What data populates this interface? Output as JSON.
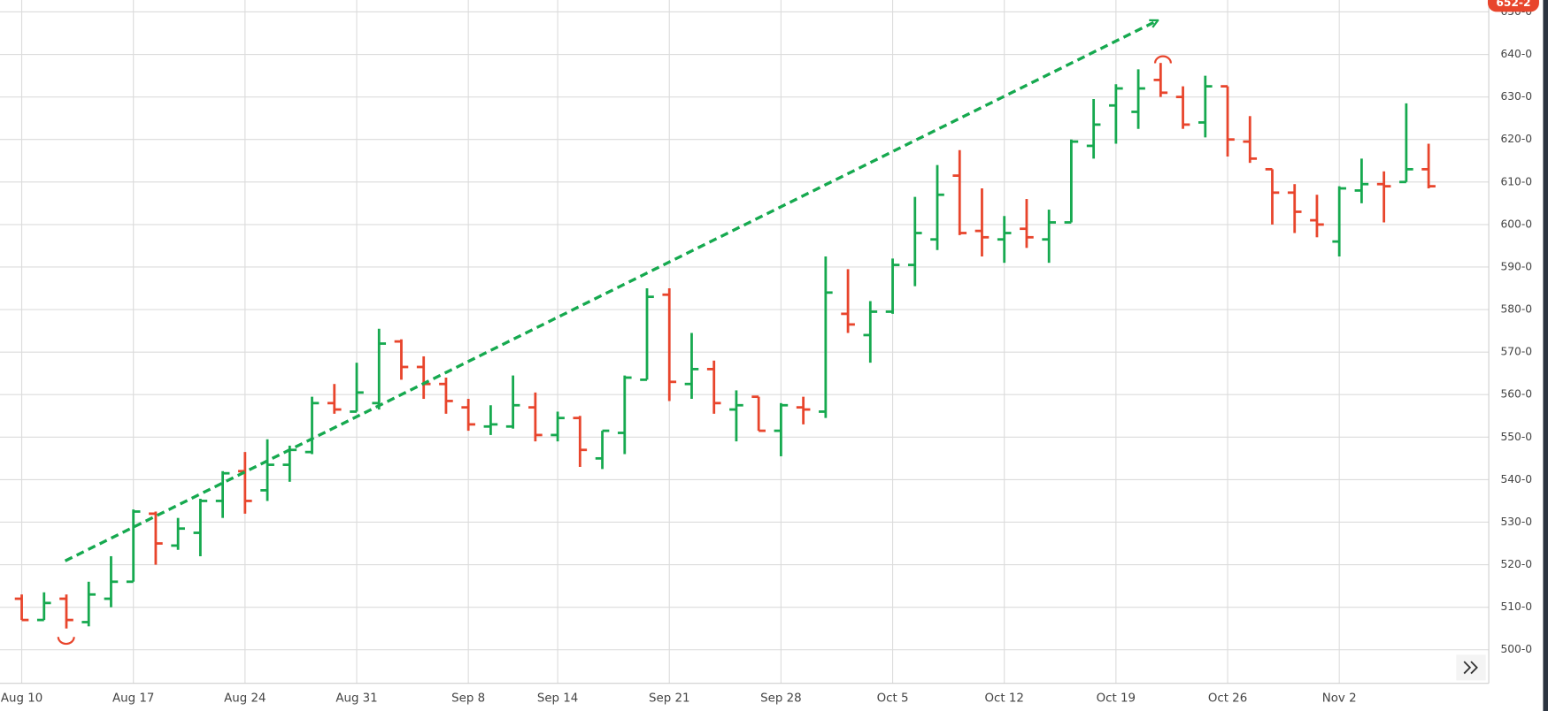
{
  "chart_data": {
    "type": "ohlc",
    "up_color": "#16a94f",
    "down_color": "#e8452c",
    "price_badge": "652-2",
    "categories": [
      "Aug 10",
      null,
      null,
      null,
      null,
      "Aug 17",
      null,
      null,
      null,
      null,
      "Aug 24",
      null,
      null,
      null,
      null,
      "Aug 31",
      null,
      null,
      null,
      null,
      "Sep 8",
      null,
      null,
      null,
      "Sep 14",
      null,
      null,
      null,
      null,
      "Sep 21",
      null,
      null,
      null,
      null,
      "Sep 28",
      null,
      null,
      null,
      null,
      "Oct 5",
      null,
      null,
      null,
      null,
      "Oct 12",
      null,
      null,
      null,
      null,
      "Oct 19",
      null,
      null,
      null,
      null,
      "Oct 26",
      null,
      null,
      null,
      null,
      "Nov 2",
      null,
      null,
      null,
      null
    ],
    "open": [
      512,
      507,
      512,
      506.5,
      512,
      516,
      532,
      524.5,
      527.5,
      535,
      542,
      537.5,
      543.5,
      546.5,
      558,
      556,
      558,
      572.5,
      566.5,
      562.5,
      557,
      552.5,
      552.5,
      557,
      550.5,
      554.5,
      545,
      551,
      563.5,
      583.5,
      562.5,
      566,
      556.5,
      559.5,
      551.5,
      557,
      556,
      579,
      574,
      579.5,
      590.5,
      596.5,
      611.5,
      598.5,
      596.5,
      599,
      596.5,
      600.5,
      618.5,
      628,
      626.5,
      634,
      630,
      624,
      632.5,
      619.5,
      613,
      607.5,
      601,
      596,
      608,
      609.5,
      610,
      613
    ],
    "high": [
      513,
      513.5,
      513,
      516,
      522,
      533,
      532.5,
      531,
      535.5,
      542,
      546.5,
      549.5,
      548,
      559.5,
      562.5,
      567.5,
      575.5,
      573,
      569,
      564,
      559,
      557.5,
      564.5,
      560.5,
      556,
      555,
      551.5,
      564.5,
      585,
      585,
      574.5,
      568,
      561,
      559.5,
      558,
      559.5,
      592.5,
      589.5,
      582,
      592,
      606.5,
      614,
      617.5,
      608.5,
      602,
      606,
      603.5,
      620,
      629.5,
      633,
      636.5,
      638,
      632.5,
      635,
      632.5,
      625.5,
      613,
      609.5,
      607,
      609,
      615.5,
      612.5,
      628.5,
      619
    ],
    "low": [
      507,
      507,
      505,
      505.5,
      510,
      516,
      520,
      523.5,
      522,
      531,
      532,
      535,
      539.5,
      546,
      555.5,
      556,
      556.5,
      563.5,
      559,
      555.5,
      551.5,
      550.5,
      552,
      549,
      549,
      543,
      542.5,
      546,
      563.5,
      558.5,
      559,
      555.5,
      549,
      551.5,
      545.5,
      553,
      554.5,
      574.5,
      567.5,
      579,
      585.5,
      594,
      597.5,
      592.5,
      591,
      594.5,
      591,
      600.5,
      615.5,
      619,
      622.5,
      630,
      622.5,
      620.5,
      616,
      614.5,
      600,
      598,
      597,
      592.5,
      605,
      600.5,
      610,
      608.5
    ],
    "close": [
      507,
      511,
      507,
      513,
      516,
      532.5,
      525,
      528.5,
      535,
      541.5,
      535,
      543.5,
      547,
      558,
      556.5,
      560.5,
      572,
      566.5,
      562.5,
      558.5,
      553,
      553,
      557.5,
      550.5,
      554.5,
      547,
      551.5,
      564,
      583,
      563,
      566,
      558,
      557.5,
      551.5,
      557.5,
      556.5,
      584,
      576.5,
      579.5,
      590.5,
      598,
      607,
      598,
      597,
      598,
      597,
      600.5,
      619.5,
      623.5,
      632,
      632,
      631,
      623.5,
      632.5,
      620,
      615.5,
      607.5,
      603,
      600,
      608.5,
      609.5,
      609,
      613,
      609
    ],
    "ylim": [
      492.1,
      652.8
    ],
    "yticks": [
      {
        "value": 500,
        "label": "500-0"
      },
      {
        "value": 510,
        "label": "510-0"
      },
      {
        "value": 520,
        "label": "520-0"
      },
      {
        "value": 530,
        "label": "530-0"
      },
      {
        "value": 540,
        "label": "540-0"
      },
      {
        "value": 550,
        "label": "550-0"
      },
      {
        "value": 560,
        "label": "560-0"
      },
      {
        "value": 570,
        "label": "570-0"
      },
      {
        "value": 580,
        "label": "580-0"
      },
      {
        "value": 590,
        "label": "590-0"
      },
      {
        "value": 600,
        "label": "600-0"
      },
      {
        "value": 610,
        "label": "610-0"
      },
      {
        "value": 620,
        "label": "620-0"
      },
      {
        "value": 630,
        "label": "630-0"
      },
      {
        "value": 640,
        "label": "640-0"
      },
      {
        "value": 650,
        "label": "650-0"
      }
    ],
    "grid": true
  }
}
